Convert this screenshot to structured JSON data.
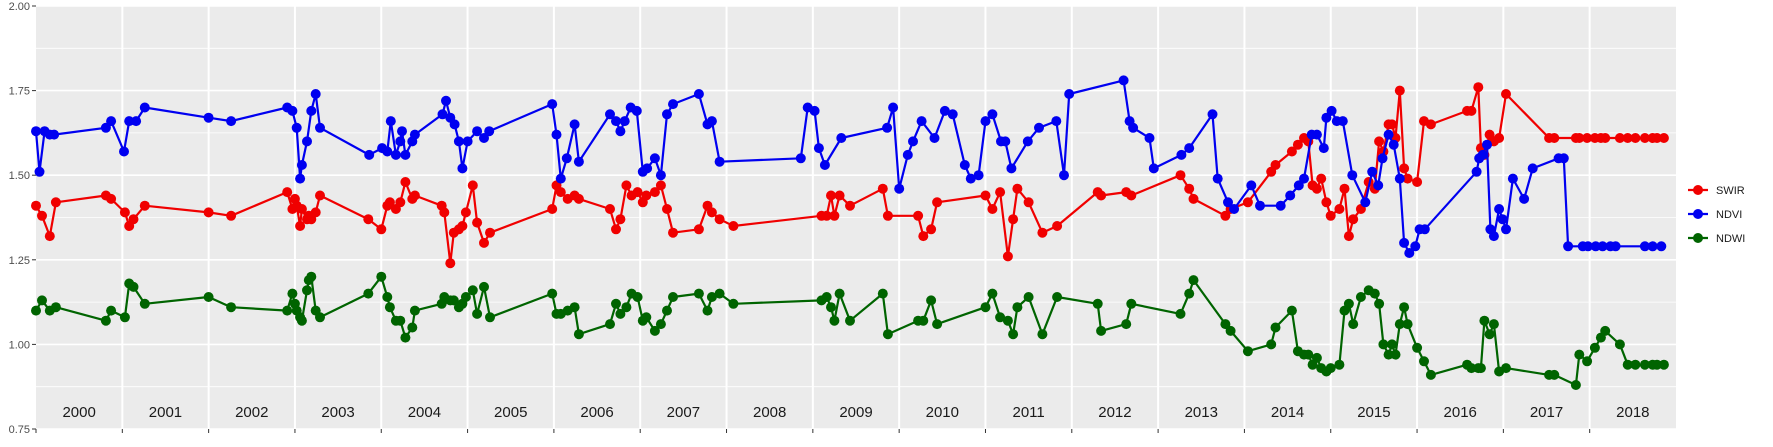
{
  "chart_data": {
    "type": "line",
    "title": "",
    "xlabel": "",
    "ylabel": "",
    "xlim": [
      2000.0,
      2019.0
    ],
    "ylim": [
      0.75,
      2.0
    ],
    "y_ticks": [
      "0.75",
      "1.00",
      "1.25",
      "1.50",
      "1.75",
      "2.00"
    ],
    "y_tick_values": [
      0.75,
      1.0,
      1.25,
      1.5,
      1.75,
      2.0
    ],
    "year_labels": [
      "2000",
      "2001",
      "2002",
      "2003",
      "2004",
      "2005",
      "2006",
      "2007",
      "2008",
      "2009",
      "2010",
      "2011",
      "2012",
      "2013",
      "2014",
      "2015",
      "2016",
      "2017",
      "2018"
    ],
    "year_boundaries": [
      2001,
      2002,
      2003,
      2004,
      2005,
      2006,
      2007,
      2008,
      2009,
      2010,
      2011,
      2012,
      2013,
      2014,
      2015,
      2016,
      2017,
      2018
    ],
    "grid": true,
    "legend_position": "right",
    "colors": {
      "SWIR": "#f00000",
      "NDVI": "#0000f0",
      "NDWI": "#006400",
      "panel": "#ebebeb",
      "grid": "#ffffff"
    },
    "series": [
      {
        "name": "SWIR",
        "color": "#f00000",
        "x": [
          2000.0,
          2000.07,
          2000.16,
          2000.23,
          2000.81,
          2000.87,
          2001.03,
          2001.08,
          2001.13,
          2001.26,
          2002.0,
          2002.26,
          2002.91,
          2002.97,
          2003.0,
          2003.02,
          2003.06,
          2003.08,
          2003.14,
          2003.16,
          2003.19,
          2003.24,
          2003.29,
          2003.85,
          2004.0,
          2004.07,
          2004.1,
          2004.17,
          2004.22,
          2004.28,
          2004.36,
          2004.39,
          2004.7,
          2004.73,
          2004.8,
          2004.84,
          2004.9,
          2004.94,
          2004.98,
          2005.06,
          2005.11,
          2005.19,
          2005.26,
          2005.98,
          2006.03,
          2006.08,
          2006.16,
          2006.24,
          2006.29,
          2006.65,
          2006.72,
          2006.77,
          2006.84,
          2006.9,
          2006.97,
          2007.03,
          2007.07,
          2007.17,
          2007.24,
          2007.31,
          2007.38,
          2007.68,
          2007.78,
          2007.83,
          2007.92,
          2008.08,
          2009.1,
          2009.16,
          2009.21,
          2009.25,
          2009.31,
          2009.43,
          2009.81,
          2009.87,
          2010.22,
          2010.28,
          2010.37,
          2010.44,
          2011.0,
          2011.08,
          2011.17,
          2011.26,
          2011.32,
          2011.37,
          2011.5,
          2011.66,
          2011.83,
          2012.3,
          2012.34,
          2012.63,
          2012.69,
          2013.26,
          2013.36,
          2013.41,
          2013.78,
          2013.84,
          2014.04,
          2014.31,
          2014.36,
          2014.55,
          2014.62,
          2014.69,
          2014.74,
          2014.79,
          2014.84,
          2014.89,
          2014.95,
          2015.0,
          2015.1,
          2015.16,
          2015.21,
          2015.26,
          2015.35,
          2015.44,
          2015.51,
          2015.56,
          2015.61,
          2015.67,
          2015.71,
          2015.75,
          2015.8,
          2015.85,
          2015.89,
          2016.0,
          2016.08,
          2016.16,
          2016.58,
          2016.63,
          2016.71,
          2016.74,
          2016.78,
          2016.84,
          2016.89,
          2016.95,
          2017.03,
          2017.53,
          2017.59,
          2017.84,
          2017.88,
          2017.97,
          2018.06,
          2018.13,
          2018.18,
          2018.35,
          2018.44,
          2018.53,
          2018.64,
          2018.73,
          2018.78,
          2018.86
        ]
      },
      {
        "name": "NDVI",
        "color": "#0000f0",
        "x": [
          2000.0,
          2000.04,
          2000.1,
          2000.16,
          2000.21,
          2000.81,
          2000.87,
          2001.02,
          2001.08,
          2001.16,
          2001.26,
          2002.0,
          2002.26,
          2002.91,
          2002.97,
          2003.02,
          2003.06,
          2003.08,
          2003.14,
          2003.19,
          2003.24,
          2003.29,
          2003.86,
          2004.01,
          2004.07,
          2004.11,
          2004.17,
          2004.22,
          2004.24,
          2004.28,
          2004.36,
          2004.39,
          2004.71,
          2004.75,
          2004.8,
          2004.85,
          2004.9,
          2004.94,
          2005.0,
          2005.11,
          2005.19,
          2005.25,
          2005.98,
          2006.03,
          2006.08,
          2006.15,
          2006.24,
          2006.29,
          2006.65,
          2006.72,
          2006.77,
          2006.82,
          2006.89,
          2006.96,
          2007.03,
          2007.08,
          2007.17,
          2007.24,
          2007.31,
          2007.38,
          2007.68,
          2007.78,
          2007.83,
          2007.92,
          2008.86,
          2008.94,
          2009.02,
          2009.07,
          2009.14,
          2009.33,
          2009.86,
          2009.93,
          2010.0,
          2010.1,
          2010.16,
          2010.26,
          2010.41,
          2010.53,
          2010.62,
          2010.76,
          2010.83,
          2010.92,
          2011.0,
          2011.08,
          2011.18,
          2011.23,
          2011.3,
          2011.49,
          2011.62,
          2011.82,
          2011.91,
          2011.97,
          2012.6,
          2012.67,
          2012.71,
          2012.9,
          2012.95,
          2013.27,
          2013.36,
          2013.63,
          2013.69,
          2013.81,
          2013.88,
          2014.08,
          2014.18,
          2014.42,
          2014.53,
          2014.63,
          2014.69,
          2014.78,
          2014.84,
          2014.92,
          2014.95,
          2015.01,
          2015.07,
          2015.14,
          2015.25,
          2015.4,
          2015.48,
          2015.55,
          2015.6,
          2015.67,
          2015.73,
          2015.8,
          2015.85,
          2015.91,
          2015.98,
          2016.03,
          2016.09,
          2016.69,
          2016.72,
          2016.76,
          2016.81,
          2016.85,
          2016.89,
          2016.95,
          2016.99,
          2017.03,
          2017.11,
          2017.24,
          2017.34,
          2017.64,
          2017.7,
          2017.75,
          2017.92,
          2017.98,
          2018.07,
          2018.15,
          2018.24,
          2018.3,
          2018.64,
          2018.73,
          2018.83,
          2018.86,
          2018.95
        ]
      },
      {
        "name": "NDWI",
        "color": "#006400",
        "x": [
          2000.0,
          2000.07,
          2000.16,
          2000.23,
          2000.81,
          2000.87,
          2001.03,
          2001.08,
          2001.13,
          2001.26,
          2002.0,
          2002.26,
          2002.91,
          2002.97,
          2003.0,
          2003.02,
          2003.06,
          2003.08,
          2003.14,
          2003.16,
          2003.19,
          2003.24,
          2003.29,
          2003.85,
          2004.0,
          2004.07,
          2004.1,
          2004.17,
          2004.22,
          2004.28,
          2004.36,
          2004.39,
          2004.7,
          2004.73,
          2004.8,
          2004.84,
          2004.9,
          2004.94,
          2004.98,
          2005.06,
          2005.11,
          2005.19,
          2005.26,
          2005.98,
          2006.03,
          2006.08,
          2006.16,
          2006.24,
          2006.29,
          2006.65,
          2006.72,
          2006.77,
          2006.84,
          2006.9,
          2006.97,
          2007.03,
          2007.07,
          2007.17,
          2007.24,
          2007.31,
          2007.38,
          2007.68,
          2007.78,
          2007.83,
          2007.92,
          2008.08,
          2009.1,
          2009.16,
          2009.21,
          2009.25,
          2009.31,
          2009.43,
          2009.81,
          2009.87,
          2010.22,
          2010.28,
          2010.37,
          2010.44,
          2011.0,
          2011.08,
          2011.17,
          2011.26,
          2011.32,
          2011.37,
          2011.5,
          2011.66,
          2011.83,
          2012.3,
          2012.34,
          2012.63,
          2012.69,
          2013.26,
          2013.36,
          2013.41,
          2013.78,
          2013.84,
          2014.04,
          2014.31,
          2014.36,
          2014.55,
          2014.62,
          2014.69,
          2014.74,
          2014.79,
          2014.84,
          2014.89,
          2014.95,
          2015.0,
          2015.1,
          2015.16,
          2015.21,
          2015.26,
          2015.35,
          2015.44,
          2015.51,
          2015.56,
          2015.61,
          2015.67,
          2015.71,
          2015.75,
          2015.8,
          2015.85,
          2015.89,
          2016.0,
          2016.08,
          2016.16,
          2016.58,
          2016.63,
          2016.71,
          2016.74,
          2016.78,
          2016.84,
          2016.89,
          2016.95,
          2017.03,
          2017.53,
          2017.59,
          2017.84,
          2017.88,
          2017.97,
          2018.06,
          2018.13,
          2018.18,
          2018.35,
          2018.44,
          2018.53,
          2018.64,
          2018.73,
          2018.78,
          2018.86
        ]
      }
    ],
    "y_values": {
      "SWIR": [
        1.41,
        1.38,
        1.32,
        1.42,
        1.44,
        1.43,
        1.39,
        1.35,
        1.37,
        1.41,
        1.39,
        1.38,
        1.45,
        1.4,
        1.43,
        1.41,
        1.35,
        1.4,
        1.37,
        1.38,
        1.37,
        1.39,
        1.44,
        1.37,
        1.34,
        1.41,
        1.42,
        1.4,
        1.42,
        1.48,
        1.43,
        1.44,
        1.41,
        1.39,
        1.24,
        1.33,
        1.34,
        1.35,
        1.39,
        1.47,
        1.36,
        1.3,
        1.33,
        1.4,
        1.47,
        1.45,
        1.43,
        1.44,
        1.43,
        1.4,
        1.34,
        1.37,
        1.47,
        1.44,
        1.45,
        1.42,
        1.44,
        1.45,
        1.47,
        1.4,
        1.33,
        1.34,
        1.41,
        1.39,
        1.37,
        1.35,
        1.38,
        1.38,
        1.44,
        1.38,
        1.44,
        1.41,
        1.46,
        1.38,
        1.38,
        1.32,
        1.34,
        1.42,
        1.44,
        1.4,
        1.45,
        1.26,
        1.37,
        1.46,
        1.42,
        1.33,
        1.35,
        1.45,
        1.44,
        1.45,
        1.44,
        1.5,
        1.46,
        1.43,
        1.38,
        1.4,
        1.42,
        1.51,
        1.53,
        1.57,
        1.59,
        1.61,
        1.6,
        1.47,
        1.46,
        1.49,
        1.42,
        1.38,
        1.4,
        1.46,
        1.32,
        1.37,
        1.4,
        1.48,
        1.46,
        1.6,
        1.57,
        1.65,
        1.65,
        1.61,
        1.75,
        1.52,
        1.49,
        1.48,
        1.66,
        1.65,
        1.69,
        1.69,
        1.76,
        1.58,
        1.56,
        1.62,
        1.6,
        1.61,
        1.74,
        1.61,
        1.61,
        1.61,
        1.61,
        1.61,
        1.61,
        1.61,
        1.61,
        1.61,
        1.61,
        1.61,
        1.61,
        1.61,
        1.61,
        1.61
      ],
      "NDVI": [
        1.63,
        1.51,
        1.63,
        1.62,
        1.62,
        1.64,
        1.66,
        1.57,
        1.66,
        1.66,
        1.7,
        1.67,
        1.66,
        1.7,
        1.69,
        1.64,
        1.49,
        1.53,
        1.6,
        1.69,
        1.74,
        1.64,
        1.56,
        1.58,
        1.57,
        1.66,
        1.56,
        1.6,
        1.63,
        1.56,
        1.6,
        1.62,
        1.68,
        1.72,
        1.67,
        1.65,
        1.6,
        1.52,
        1.6,
        1.63,
        1.61,
        1.63,
        1.71,
        1.62,
        1.49,
        1.55,
        1.65,
        1.54,
        1.68,
        1.66,
        1.63,
        1.66,
        1.7,
        1.69,
        1.51,
        1.52,
        1.55,
        1.5,
        1.68,
        1.71,
        1.74,
        1.65,
        1.66,
        1.54,
        1.55,
        1.7,
        1.69,
        1.58,
        1.53,
        1.61,
        1.64,
        1.7,
        1.46,
        1.56,
        1.6,
        1.66,
        1.61,
        1.69,
        1.68,
        1.53,
        1.49,
        1.5,
        1.66,
        1.68,
        1.6,
        1.6,
        1.52,
        1.6,
        1.64,
        1.66,
        1.5,
        1.74,
        1.78,
        1.66,
        1.64,
        1.61,
        1.52,
        1.56,
        1.58,
        1.68,
        1.49,
        1.42,
        1.4,
        1.47,
        1.41,
        1.41,
        1.44,
        1.47,
        1.49,
        1.62,
        1.62,
        1.58,
        1.67,
        1.69,
        1.66,
        1.66,
        1.5,
        1.42,
        1.51,
        1.47,
        1.55,
        1.62,
        1.59,
        1.49,
        1.3,
        1.27,
        1.29,
        1.34,
        1.34,
        1.51,
        1.55,
        1.56,
        1.59,
        1.34,
        1.32,
        1.4,
        1.37,
        1.34,
        1.49,
        1.43,
        1.52,
        1.55,
        1.55,
        1.29,
        1.29,
        1.29,
        1.29,
        1.29,
        1.29,
        1.29,
        1.29,
        1.29,
        1.29
      ],
      "NDWI": [
        1.1,
        1.13,
        1.1,
        1.11,
        1.07,
        1.1,
        1.08,
        1.18,
        1.17,
        1.12,
        1.14,
        1.11,
        1.1,
        1.15,
        1.12,
        1.1,
        1.08,
        1.07,
        1.16,
        1.19,
        1.2,
        1.1,
        1.08,
        1.15,
        1.2,
        1.14,
        1.11,
        1.07,
        1.07,
        1.02,
        1.05,
        1.1,
        1.12,
        1.14,
        1.13,
        1.13,
        1.11,
        1.12,
        1.14,
        1.16,
        1.09,
        1.17,
        1.08,
        1.15,
        1.09,
        1.09,
        1.1,
        1.11,
        1.03,
        1.06,
        1.12,
        1.09,
        1.11,
        1.15,
        1.14,
        1.07,
        1.08,
        1.04,
        1.06,
        1.1,
        1.14,
        1.15,
        1.1,
        1.14,
        1.15,
        1.12,
        1.13,
        1.14,
        1.11,
        1.07,
        1.15,
        1.07,
        1.15,
        1.03,
        1.07,
        1.07,
        1.13,
        1.06,
        1.11,
        1.15,
        1.08,
        1.07,
        1.03,
        1.11,
        1.14,
        1.03,
        1.14,
        1.12,
        1.04,
        1.06,
        1.12,
        1.09,
        1.15,
        1.19,
        1.06,
        1.04,
        0.98,
        1.0,
        1.05,
        1.1,
        0.98,
        0.97,
        0.97,
        0.94,
        0.96,
        0.93,
        0.92,
        0.93,
        0.94,
        1.1,
        1.12,
        1.06,
        1.14,
        1.16,
        1.15,
        1.12,
        1.0,
        0.97,
        1.0,
        0.97,
        1.06,
        1.11,
        1.06,
        0.99,
        0.95,
        0.91,
        0.94,
        0.93,
        0.93,
        0.93,
        1.07,
        1.03,
        1.06,
        0.92,
        0.93,
        0.91,
        0.91,
        0.88,
        0.97,
        0.95,
        0.99,
        1.02,
        1.04,
        1.0,
        0.94,
        0.94,
        0.94,
        0.94,
        0.94,
        0.94,
        0.94,
        0.94,
        0.94,
        0.94
      ]
    }
  }
}
